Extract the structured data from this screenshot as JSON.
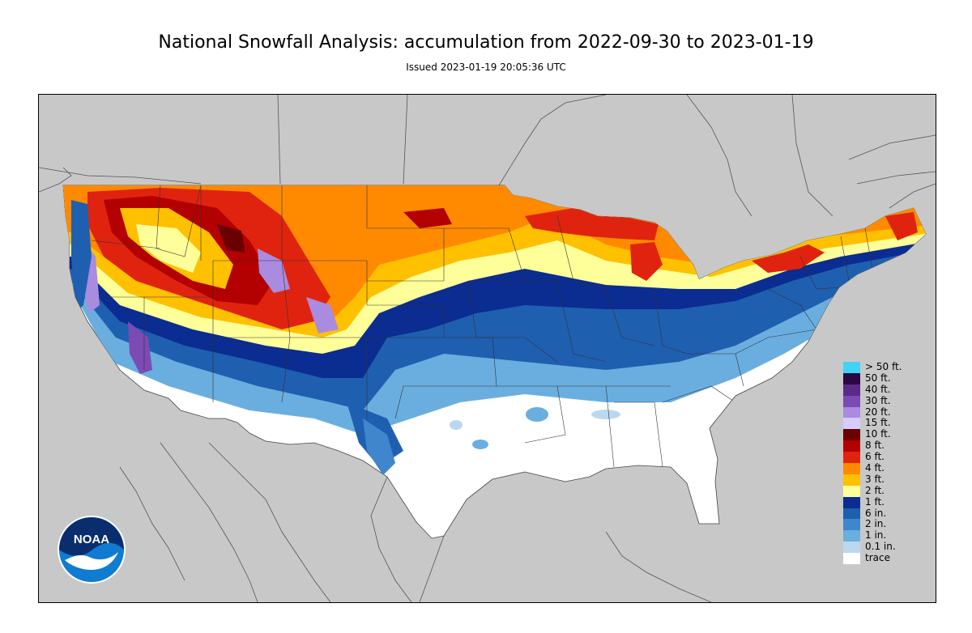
{
  "header": {
    "title": "National Snowfall Analysis: accumulation from 2022-09-30 to 2023-01-19",
    "issued": "Issued 2023-01-19 20:05:36 UTC"
  },
  "logo": {
    "text": "NOAA",
    "icon": "noaa-logo-icon"
  },
  "colors": {
    "background": "#c8c8c8",
    "land_none": "#ffffff",
    "boundary_line": "#555555"
  },
  "legend": {
    "items": [
      {
        "label": "> 50 ft.",
        "color": "#3fd4f5"
      },
      {
        "label": "50 ft.",
        "color": "#2a0845"
      },
      {
        "label": "40 ft.",
        "color": "#5b2a86"
      },
      {
        "label": "30 ft.",
        "color": "#7b4bb3"
      },
      {
        "label": "20 ft.",
        "color": "#a98be0"
      },
      {
        "label": "15 ft.",
        "color": "#d6ccff"
      },
      {
        "label": "10 ft.",
        "color": "#6b0000"
      },
      {
        "label": "8 ft.",
        "color": "#b30000"
      },
      {
        "label": "6 ft.",
        "color": "#e0230f"
      },
      {
        "label": "4 ft.",
        "color": "#ff8a00"
      },
      {
        "label": "3 ft.",
        "color": "#ffc000"
      },
      {
        "label": "2 ft.",
        "color": "#ffff99"
      },
      {
        "label": "1 ft.",
        "color": "#0b2c91"
      },
      {
        "label": "6 in.",
        "color": "#1f5fb0"
      },
      {
        "label": "2 in.",
        "color": "#3f86cc"
      },
      {
        "label": "1 in.",
        "color": "#6aaee0"
      },
      {
        "label": "0.1 in.",
        "color": "#bcd8ee"
      },
      {
        "label": "trace",
        "color": "#ffffff"
      }
    ]
  }
}
